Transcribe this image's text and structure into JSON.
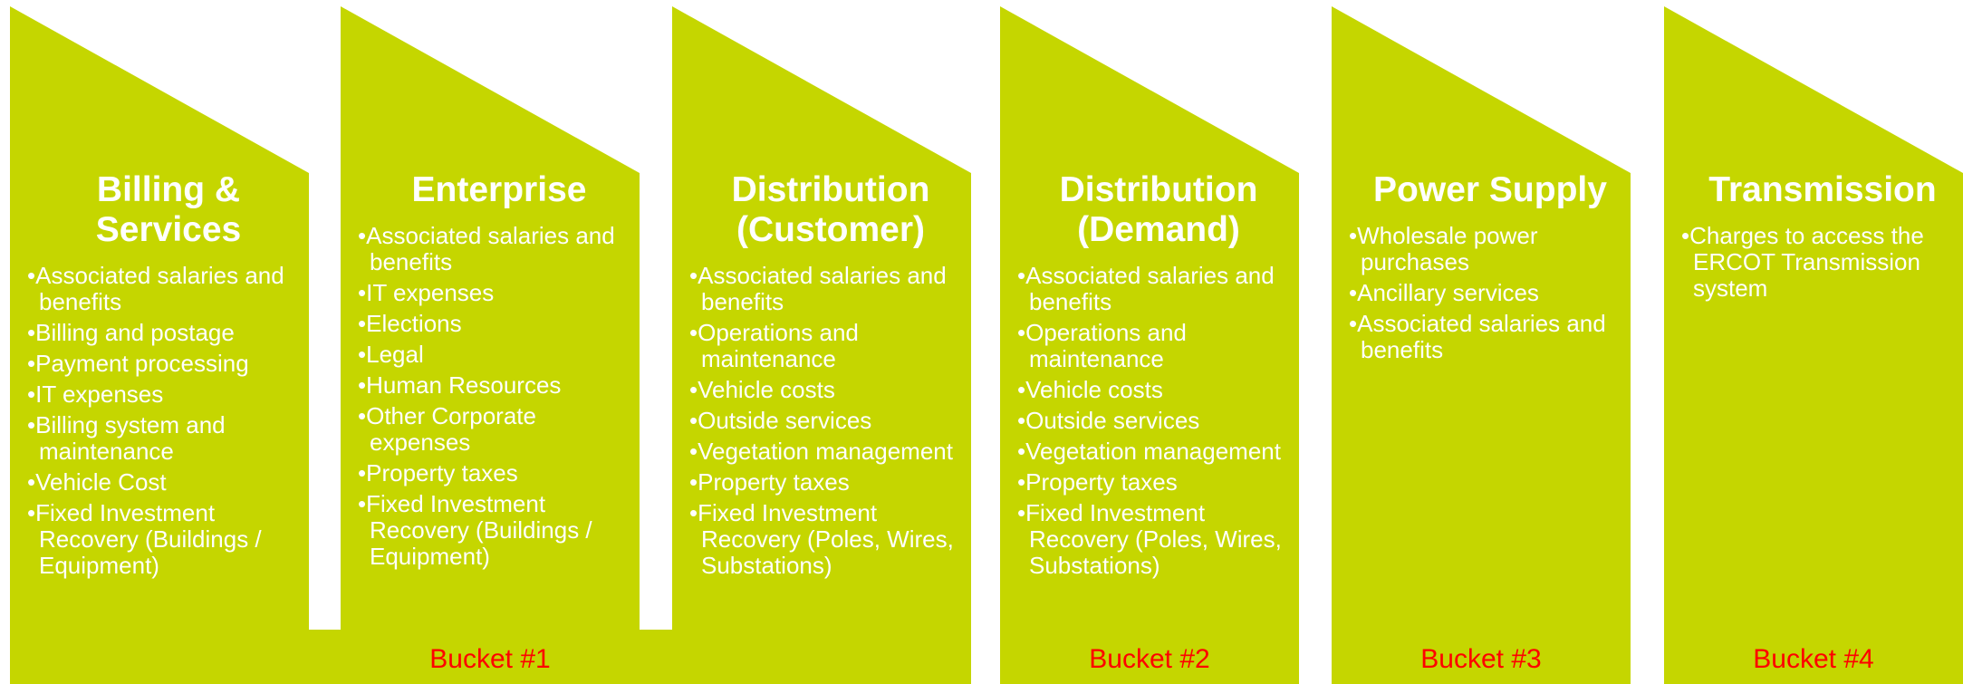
{
  "columns": [
    {
      "title": "Billing & Services",
      "items": [
        "Associated salaries and benefits",
        "Billing and postage",
        "Payment processing",
        "IT expenses",
        "Billing system and maintenance",
        "Vehicle Cost",
        "Fixed Investment Recovery (Buildings / Equipment)"
      ]
    },
    {
      "title": "Enterprise",
      "items": [
        "Associated salaries and benefits",
        "IT expenses",
        "Elections",
        "Legal",
        "Human Resources",
        "Other Corporate expenses",
        "Property taxes",
        "Fixed Investment Recovery (Buildings / Equipment)"
      ]
    },
    {
      "title": "Distribution (Customer)",
      "items": [
        "Associated salaries and benefits",
        "Operations and maintenance",
        "Vehicle costs",
        "Outside services",
        "Vegetation management",
        "Property taxes",
        "Fixed Investment Recovery (Poles, Wires, Substations)"
      ]
    },
    {
      "title": "Distribution (Demand)",
      "items": [
        "Associated salaries and benefits",
        "Operations and maintenance",
        "Vehicle costs",
        "Outside services",
        "Vegetation management",
        "Property taxes",
        "Fixed Investment Recovery (Poles, Wires, Substations)"
      ]
    },
    {
      "title": "Power Supply",
      "items": [
        "Wholesale power purchases",
        "Ancillary services",
        "Associated salaries and benefits"
      ]
    },
    {
      "title": "Transmission",
      "items": [
        "Charges to access the ERCOT Transmission system"
      ]
    }
  ],
  "buckets": [
    "Bucket #1",
    "Bucket #2",
    "Bucket #3",
    "Bucket #4"
  ]
}
